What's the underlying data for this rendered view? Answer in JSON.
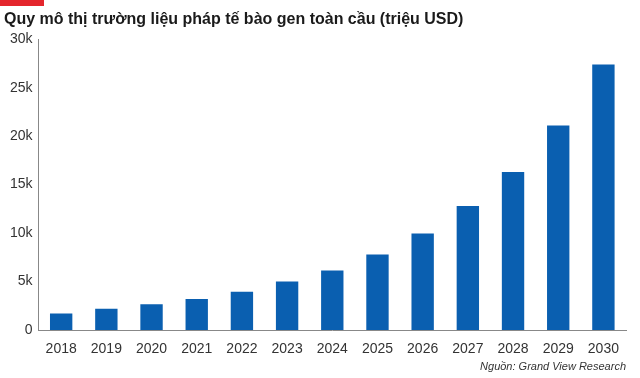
{
  "chart_data": {
    "type": "bar",
    "title": "Quy mô thị trường liệu pháp tế bào gen toàn cầu (triệu USD)",
    "source": "Nguồn: Grand View Research",
    "categories": [
      "2018",
      "2019",
      "2020",
      "2021",
      "2022",
      "2023",
      "2024",
      "2025",
      "2026",
      "2027",
      "2028",
      "2029",
      "2030"
    ],
    "values": [
      1700,
      2200,
      2650,
      3200,
      3950,
      5000,
      6150,
      7800,
      9950,
      12800,
      16300,
      21100,
      27400
    ],
    "color": "#0a5fb0",
    "ylim": [
      0,
      30000
    ],
    "yticks": [
      0,
      {
        "value": 5000,
        "label": "5k"
      },
      {
        "value": 10000,
        "label": "10k"
      },
      {
        "value": 15000,
        "label": "15k"
      },
      {
        "value": 20000,
        "label": "20k"
      },
      {
        "value": 25000,
        "label": "25k"
      },
      {
        "value": 30000,
        "label": "30k"
      }
    ],
    "grid": false
  }
}
